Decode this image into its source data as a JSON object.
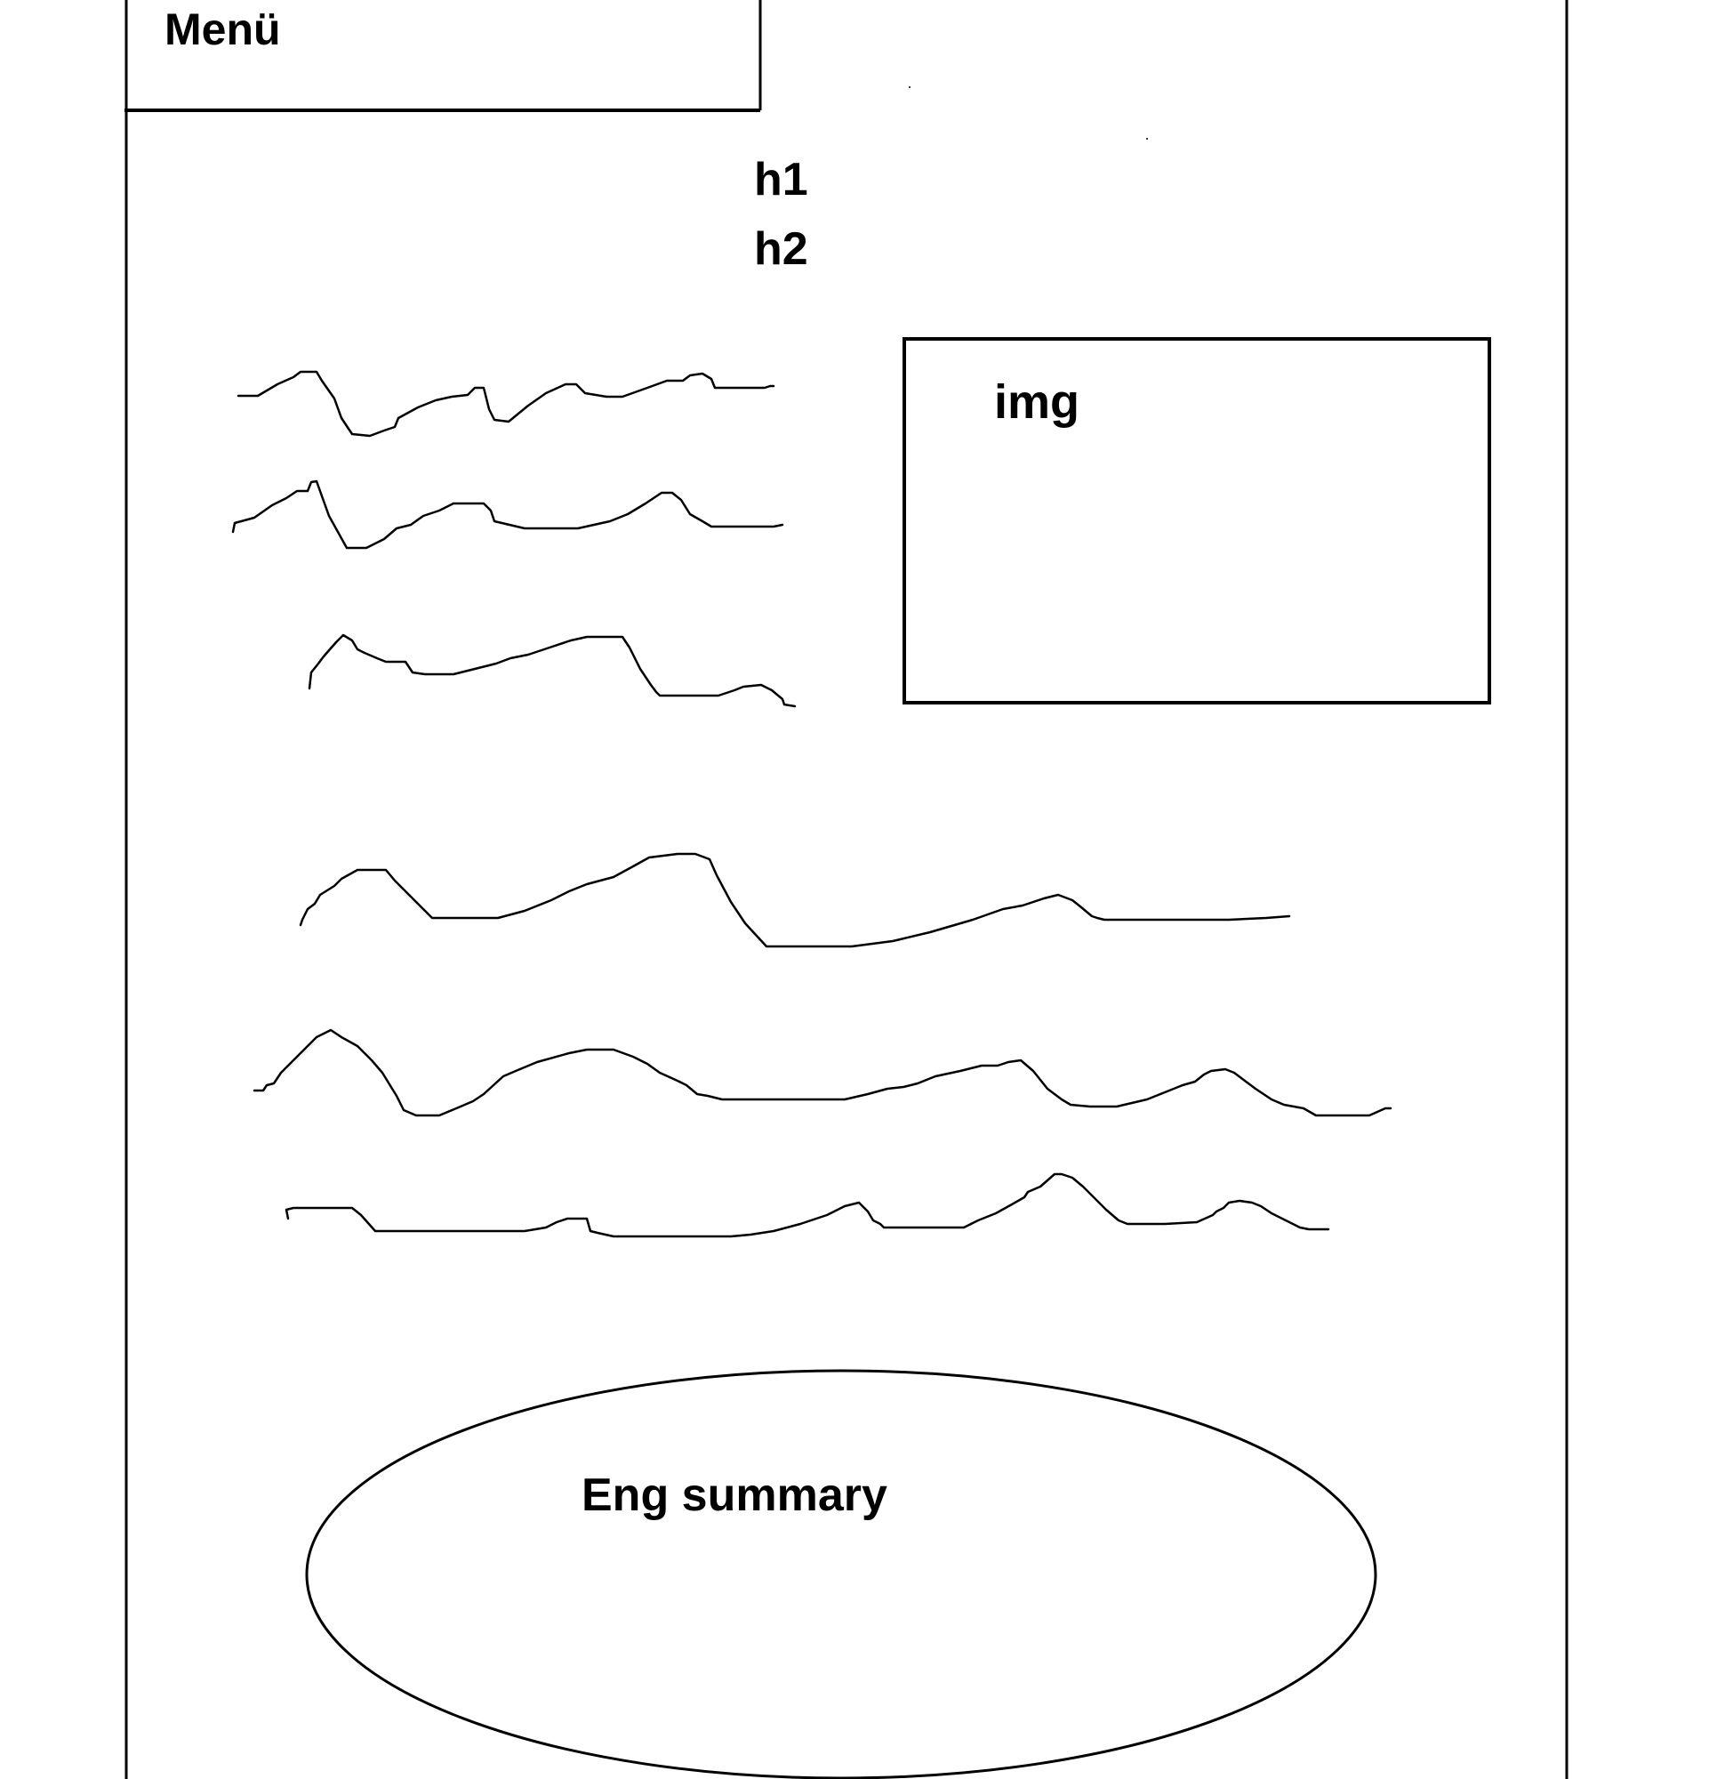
{
  "menu": {
    "label": "Menü"
  },
  "headings": {
    "h1": "h1",
    "h2": "h2"
  },
  "image_box": {
    "label": "img"
  },
  "summary": {
    "label": "Eng summary"
  },
  "text_lines": [
    {
      "name": "text-line-1"
    },
    {
      "name": "text-line-2"
    },
    {
      "name": "text-line-3"
    },
    {
      "name": "text-line-4"
    },
    {
      "name": "text-line-5"
    },
    {
      "name": "text-line-6"
    }
  ],
  "colors": {
    "ink": "#000000",
    "background": "#ffffff"
  }
}
